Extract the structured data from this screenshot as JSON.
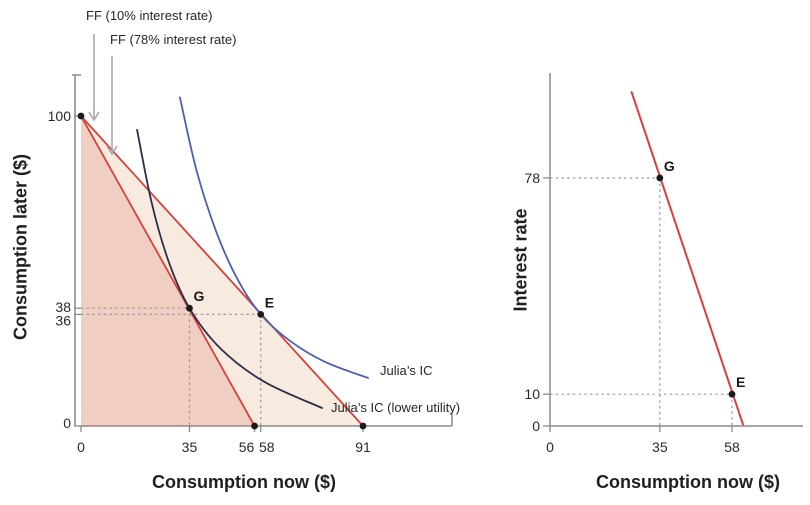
{
  "palette": {
    "red": "#d6413a",
    "blue": "#4d5fae",
    "navy": "#2e2d4d",
    "shade_dark": "#f0cec1",
    "shade_light": "#f7ebdf",
    "axis": "#8a8a8a",
    "guide": "#9a9a9a",
    "arrow": "#a8a8a8",
    "dot": "#1a1a1a",
    "text": "#2a2a2a"
  },
  "chart_data": [
    {
      "type": "line",
      "panel": "left",
      "title": "",
      "xlabel": "Consumption now ($)",
      "ylabel": "Consumption later ($)",
      "xlim": [
        0,
        120
      ],
      "ylim": [
        0,
        113
      ],
      "grid": false,
      "xticks": [
        0,
        35,
        56,
        58,
        91
      ],
      "yticks": [
        0,
        36,
        38,
        100
      ],
      "series": [
        {
          "name": "FF (10% interest rate)",
          "role": "feasible-frontier",
          "color": "red",
          "points": [
            [
              0,
              100
            ],
            [
              91,
              0
            ]
          ],
          "endpoint_dots": [
            [
              0,
              100
            ],
            [
              91,
              0
            ]
          ]
        },
        {
          "name": "FF (78% interest rate)",
          "role": "feasible-frontier",
          "color": "red",
          "points": [
            [
              0,
              100
            ],
            [
              56,
              0
            ]
          ],
          "endpoint_dots": [
            [
              56,
              0
            ]
          ]
        },
        {
          "name": "Julia’s IC",
          "role": "indifference-curve",
          "color": "blue",
          "points": [
            [
              31.9,
              106
            ],
            [
              37.4,
              82
            ],
            [
              43.9,
              62
            ],
            [
              50.7,
              47
            ],
            [
              58,
              36
            ],
            [
              67.4,
              27.5
            ],
            [
              78.7,
              20.7
            ],
            [
              92.6,
              15.5
            ]
          ]
        },
        {
          "name": "Julia’s IC (lower utility)",
          "role": "indifference-curve",
          "color": "navy",
          "points": [
            [
              18.1,
              95.5
            ],
            [
              22.8,
              72
            ],
            [
              28.3,
              53
            ],
            [
              35,
              38
            ],
            [
              45,
              25
            ],
            [
              59.1,
              14.3
            ],
            [
              77.8,
              5.8
            ]
          ]
        }
      ],
      "areas": [
        {
          "name": "feasible-set-78",
          "color": "shade_dark",
          "points": [
            [
              0,
              100
            ],
            [
              56,
              0
            ],
            [
              0,
              0
            ]
          ]
        },
        {
          "name": "extra-feasible-set-10",
          "color": "shade_light",
          "points": [
            [
              0,
              100
            ],
            [
              91,
              0
            ],
            [
              56,
              0
            ]
          ]
        }
      ],
      "points": [
        {
          "label": "G",
          "x": 35,
          "y": 38,
          "guides": true
        },
        {
          "label": "E",
          "x": 58,
          "y": 36,
          "guides": true
        }
      ],
      "annotations": {
        "ff10": "FF (10% interest rate)",
        "ff78": "FF (78% interest rate)",
        "ic_high": "Julia’s IC",
        "ic_low": "Julia’s IC (lower utility)"
      }
    },
    {
      "type": "line",
      "panel": "right",
      "title": "",
      "xlabel": "Consumption now ($)",
      "ylabel": "Interest rate",
      "xlim": [
        0,
        80
      ],
      "ylim": [
        0,
        111
      ],
      "grid": false,
      "xticks": [
        0,
        35,
        58
      ],
      "yticks": [
        0,
        10,
        78
      ],
      "series": [
        {
          "name": "borrowing-demand",
          "role": "demand-line",
          "color": "red",
          "points": [
            [
              26,
              105
            ],
            [
              61.5,
              0.5
            ]
          ],
          "endpoint_dots": []
        }
      ],
      "areas": [],
      "points": [
        {
          "label": "G",
          "x": 35,
          "y": 78,
          "guides": true
        },
        {
          "label": "E",
          "x": 58,
          "y": 10,
          "guides": true
        }
      ]
    }
  ]
}
